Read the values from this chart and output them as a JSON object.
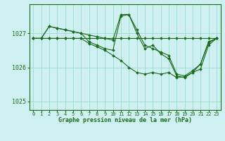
{
  "title": "Graphe pression niveau de la mer (hPa)",
  "background_color": "#cff0f0",
  "grid_color": "#99ddcc",
  "line_color": "#1a6b1a",
  "xlim": [
    -0.5,
    23.5
  ],
  "ylim": [
    1024.75,
    1027.85
  ],
  "yticks": [
    1025,
    1026,
    1027
  ],
  "xticks": [
    0,
    1,
    2,
    3,
    4,
    5,
    6,
    7,
    8,
    9,
    10,
    11,
    12,
    13,
    14,
    15,
    16,
    17,
    18,
    19,
    20,
    21,
    22,
    23
  ],
  "line1": [
    1026.85,
    1026.85,
    1026.85,
    1026.85,
    1026.85,
    1026.85,
    1026.85,
    1026.85,
    1026.85,
    1026.85,
    1026.85,
    1026.85,
    1026.85,
    1026.85,
    1026.85,
    1026.85,
    1026.85,
    1026.85,
    1026.85,
    1026.85,
    1026.85,
    1026.85,
    1026.85,
    1026.85
  ],
  "line2": [
    1026.85,
    1026.85,
    1027.2,
    1027.15,
    1027.1,
    1027.05,
    1027.0,
    1026.95,
    1026.9,
    1026.85,
    1026.8,
    1027.55,
    1027.55,
    1027.1,
    1026.65,
    1026.55,
    1026.45,
    1026.35,
    1025.8,
    1025.75,
    1025.9,
    1026.1,
    1026.75,
    1026.85
  ],
  "line3": [
    1026.85,
    1026.85,
    1027.2,
    1027.15,
    1027.1,
    1027.05,
    1027.0,
    1026.75,
    1026.65,
    1026.55,
    1026.5,
    1027.5,
    1027.55,
    1027.0,
    1026.55,
    1026.65,
    1026.4,
    1026.25,
    1025.75,
    1025.7,
    1025.85,
    1025.95,
    1026.65,
    1026.85
  ],
  "line4": [
    1026.85,
    1026.85,
    1026.85,
    1026.85,
    1026.85,
    1026.85,
    1026.85,
    1026.7,
    1026.6,
    1026.5,
    1026.35,
    1026.2,
    1026.0,
    1025.85,
    1025.8,
    1025.85,
    1025.8,
    1025.85,
    1025.7,
    1025.72,
    1025.85,
    1026.1,
    1026.72,
    1026.85
  ]
}
